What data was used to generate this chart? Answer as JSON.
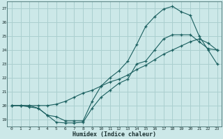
{
  "xlabel": "Humidex (Indice chaleur)",
  "bg_color": "#cce8e8",
  "grid_color": "#aacfcf",
  "line_color": "#1a5f5f",
  "xlim": [
    -0.5,
    23.5
  ],
  "ylim": [
    18.5,
    27.5
  ],
  "xticks": [
    0,
    1,
    2,
    3,
    4,
    5,
    6,
    7,
    8,
    9,
    10,
    11,
    12,
    13,
    14,
    15,
    16,
    17,
    18,
    19,
    20,
    21,
    22,
    23
  ],
  "yticks": [
    19,
    20,
    21,
    22,
    23,
    24,
    25,
    26,
    27
  ],
  "curve1_x": [
    0,
    1,
    2,
    3,
    4,
    5,
    6,
    7,
    8,
    9,
    10,
    11,
    12,
    13,
    14,
    15,
    16,
    17,
    18,
    19,
    20,
    21,
    22,
    23
  ],
  "curve1_y": [
    20.0,
    20.0,
    20.0,
    19.8,
    19.3,
    18.8,
    18.75,
    18.75,
    18.8,
    19.8,
    20.6,
    21.1,
    21.6,
    21.9,
    23.0,
    23.2,
    24.0,
    24.8,
    25.1,
    25.1,
    25.1,
    24.6,
    24.1,
    24.0
  ],
  "curve2_x": [
    0,
    1,
    2,
    3,
    4,
    5,
    6,
    7,
    8,
    9,
    10,
    11,
    12,
    13,
    14,
    15,
    16,
    17,
    18,
    19,
    20,
    21,
    22,
    23
  ],
  "curve2_y": [
    20.0,
    20.0,
    20.0,
    20.0,
    20.0,
    20.1,
    20.3,
    20.6,
    20.9,
    21.1,
    21.4,
    21.7,
    21.9,
    22.2,
    22.6,
    22.9,
    23.3,
    23.7,
    24.0,
    24.3,
    24.6,
    24.8,
    24.5,
    24.0
  ],
  "curve3_x": [
    0,
    1,
    2,
    3,
    4,
    5,
    6,
    7,
    8,
    9,
    10,
    11,
    12,
    13,
    14,
    15,
    16,
    17,
    18,
    19,
    20,
    21,
    22,
    23
  ],
  "curve3_y": [
    20.0,
    20.0,
    19.9,
    19.8,
    19.3,
    19.2,
    18.9,
    18.9,
    18.9,
    20.3,
    21.4,
    22.0,
    22.5,
    23.2,
    24.4,
    25.7,
    26.4,
    26.95,
    27.15,
    26.75,
    26.5,
    25.0,
    24.0,
    23.0
  ]
}
